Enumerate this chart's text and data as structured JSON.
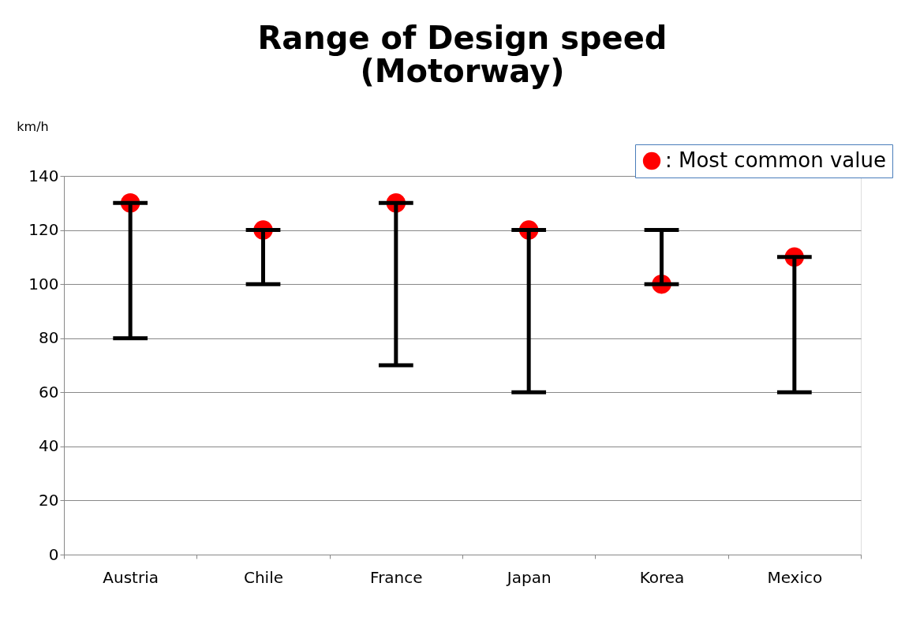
{
  "chart_data": {
    "type": "scatter",
    "title": "Range of  Design speed\n(Motorway)",
    "ylabel": "km/h",
    "categories": [
      "Austria",
      "Chile",
      "France",
      "Japan",
      "Korea",
      "Mexico"
    ],
    "series": [
      {
        "name": ": Most common value",
        "color": "#ff0000",
        "values": [
          130,
          120,
          130,
          120,
          100,
          110
        ],
        "errors": [
          [
            80,
            130
          ],
          [
            100,
            120
          ],
          [
            70,
            130
          ],
          [
            60,
            120
          ],
          [
            100,
            120
          ],
          [
            60,
            110
          ]
        ]
      }
    ],
    "marker": "circle",
    "ylim": [
      0,
      140
    ],
    "yticks": [
      0,
      20,
      40,
      60,
      80,
      100,
      120,
      140
    ],
    "grid": "y",
    "legend": "top right"
  }
}
